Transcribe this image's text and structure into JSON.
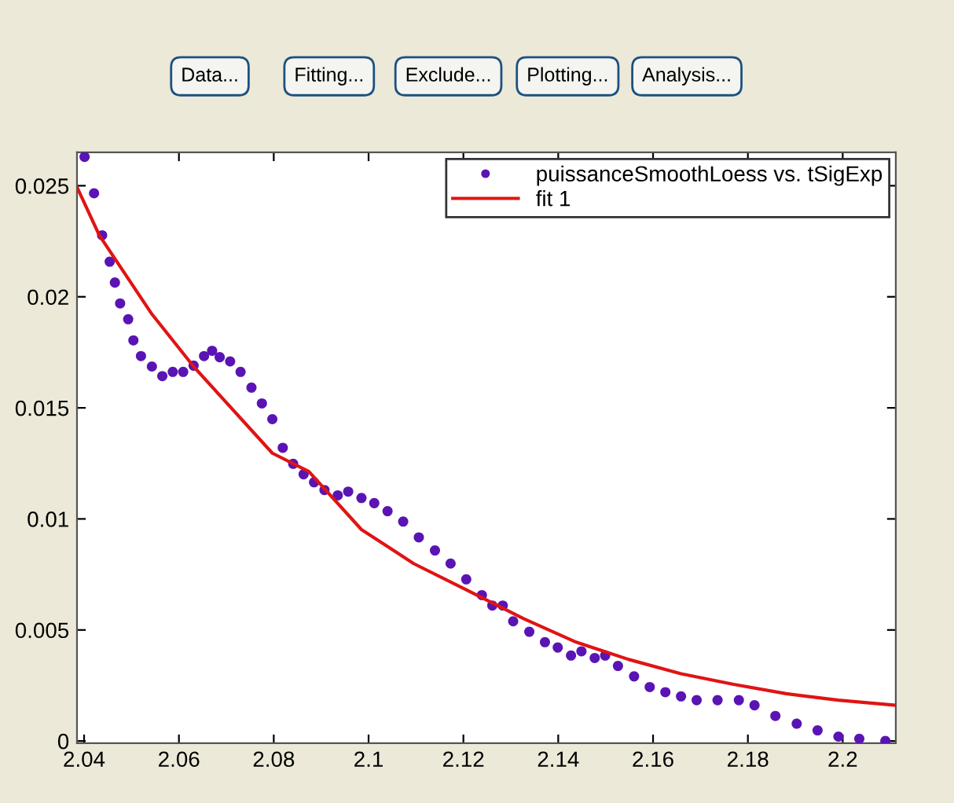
{
  "chart_data": {
    "type": "scatter",
    "xlim": [
      2.0385,
      2.2112
    ],
    "ylim": [
      -0.0001,
      0.0265
    ],
    "xticks": [
      2.04,
      2.06,
      2.08,
      2.1,
      2.12,
      2.14,
      2.16,
      2.18,
      2.2
    ],
    "yticks": [
      0,
      0.005,
      0.01,
      0.015,
      0.02,
      0.025
    ],
    "grid": false,
    "legend": "top right",
    "marker": "circle",
    "annotations": [
      "Data...",
      "Fitting...",
      "Exclude...",
      "Plotting...",
      "Analysis..."
    ],
    "series": [
      {
        "name": "puissanceSmoothLoess vs. tSigExp",
        "color": "#5a14b4",
        "x": [
          2.0401,
          2.0421,
          2.0438,
          2.0454,
          2.0465,
          2.0476,
          2.0493,
          2.0504,
          2.052,
          2.0543,
          2.0565,
          2.0587,
          2.0609,
          2.0631,
          2.0653,
          2.067,
          2.0686,
          2.0708,
          2.073,
          2.0753,
          2.0775,
          2.0797,
          2.0819,
          2.0841,
          2.0863,
          2.0885,
          2.0907,
          2.0935,
          2.0957,
          2.0985,
          2.1012,
          2.104,
          2.1073,
          2.1106,
          2.114,
          2.1173,
          2.1206,
          2.1239,
          2.1261,
          2.1283,
          2.1305,
          2.1339,
          2.1372,
          2.1399,
          2.1427,
          2.1449,
          2.1477,
          2.1499,
          2.1526,
          2.156,
          2.1593,
          2.1626,
          2.1659,
          2.1692,
          2.1736,
          2.1781,
          2.1814,
          2.1858,
          2.1903,
          2.1947,
          2.1991,
          2.2035,
          2.209
        ],
        "values": [
          0.0263,
          0.02466,
          0.02277,
          0.02158,
          0.02064,
          0.0197,
          0.01899,
          0.01804,
          0.01733,
          0.01686,
          0.01643,
          0.01662,
          0.01662,
          0.0169,
          0.01733,
          0.01757,
          0.01728,
          0.01709,
          0.01662,
          0.01591,
          0.0152,
          0.01449,
          0.0132,
          0.01248,
          0.01201,
          0.01165,
          0.0113,
          0.01106,
          0.01123,
          0.01094,
          0.01071,
          0.01035,
          0.00988,
          0.00917,
          0.00858,
          0.00799,
          0.00728,
          0.00657,
          0.0061,
          0.0061,
          0.00539,
          0.00492,
          0.00445,
          0.00421,
          0.00385,
          0.00404,
          0.00374,
          0.00385,
          0.00338,
          0.00291,
          0.00243,
          0.0022,
          0.00201,
          0.00184,
          0.00184,
          0.00184,
          0.00161,
          0.00113,
          0.00078,
          0.00048,
          0.0002,
          0.0001,
          0.0
        ]
      },
      {
        "name": "fit 1",
        "type": "line",
        "color": "#e01414",
        "line_style": "solid",
        "marker": "none",
        "x": [
          2.0385,
          2.0432,
          2.0543,
          2.0631,
          2.0797,
          2.0874,
          2.0985,
          2.1095,
          2.1206,
          2.1327,
          2.1438,
          2.1549,
          2.1659,
          2.177,
          2.1881,
          2.1991,
          2.2111
        ],
        "values": [
          0.02494,
          0.02277,
          0.01922,
          0.01686,
          0.01296,
          0.01213,
          0.00952,
          0.00799,
          0.00681,
          0.00551,
          0.00445,
          0.00367,
          0.00303,
          0.00255,
          0.00213,
          0.00184,
          0.00161
        ]
      }
    ]
  }
}
